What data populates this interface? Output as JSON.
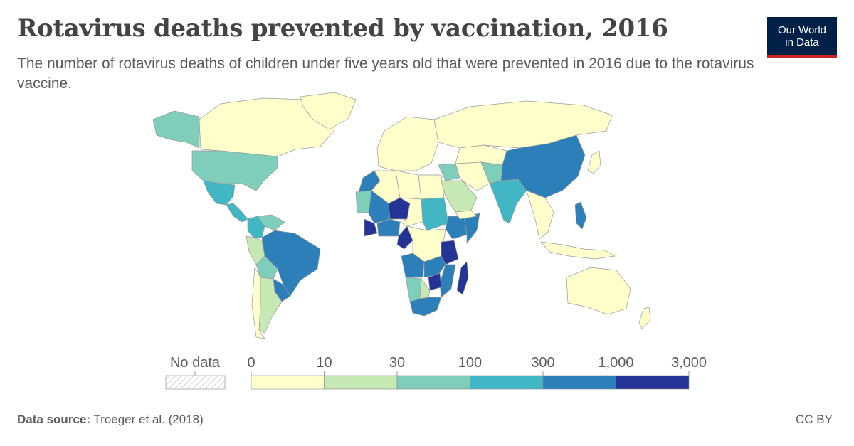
{
  "header": {
    "title": "Rotavirus deaths prevented by vaccination, 2016",
    "subtitle": "The number of rotavirus deaths of children under five years old that were prevented in 2016 due to the rotavirus vaccine."
  },
  "logo": {
    "line1": "Our World",
    "line2": "in Data",
    "bg_color": "#002147",
    "accent_color": "#ce261e"
  },
  "legend": {
    "no_data_label": "No data",
    "bins": [
      0,
      10,
      30,
      100,
      300,
      1000,
      3000
    ],
    "bin_labels": [
      "0",
      "10",
      "30",
      "100",
      "300",
      "1,000",
      "3,000"
    ],
    "colors": [
      "#ffffcc",
      "#c7e9b4",
      "#7fcdbb",
      "#41b6c4",
      "#2c7fb8",
      "#253494"
    ]
  },
  "footer": {
    "source_label": "Data source:",
    "source_text": "Troeger et al. (2018)",
    "license": "CC BY"
  },
  "map_data": {
    "type": "choropleth",
    "year": 2016,
    "regions": [
      {
        "name": "Canada",
        "bin": 0
      },
      {
        "name": "Alaska (United States)",
        "bin": 2
      },
      {
        "name": "United States",
        "bin": 2
      },
      {
        "name": "Mexico",
        "bin": 3
      },
      {
        "name": "Central America",
        "bin": 3
      },
      {
        "name": "Colombia",
        "bin": 3
      },
      {
        "name": "Venezuela",
        "bin": 2
      },
      {
        "name": "Peru",
        "bin": 1
      },
      {
        "name": "Brazil",
        "bin": 4
      },
      {
        "name": "Bolivia",
        "bin": 2
      },
      {
        "name": "Paraguay",
        "bin": 4
      },
      {
        "name": "Argentina",
        "bin": 1
      },
      {
        "name": "Chile",
        "bin": 0
      },
      {
        "name": "Greenland",
        "bin": 0
      },
      {
        "name": "Europe",
        "bin": 0
      },
      {
        "name": "Russia",
        "bin": 0
      },
      {
        "name": "Morocco",
        "bin": 4
      },
      {
        "name": "Algeria",
        "bin": 0
      },
      {
        "name": "Libya",
        "bin": 0
      },
      {
        "name": "Egypt",
        "bin": 0
      },
      {
        "name": "Mauritania",
        "bin": 2
      },
      {
        "name": "Mali",
        "bin": 4
      },
      {
        "name": "Niger",
        "bin": 5
      },
      {
        "name": "Burkina Faso",
        "bin": 5
      },
      {
        "name": "Nigeria",
        "bin": 4
      },
      {
        "name": "Chad",
        "bin": 0
      },
      {
        "name": "Sudan",
        "bin": 3
      },
      {
        "name": "Ethiopia",
        "bin": 4
      },
      {
        "name": "Somalia",
        "bin": 4
      },
      {
        "name": "DR Congo",
        "bin": 0
      },
      {
        "name": "Cameroon",
        "bin": 5
      },
      {
        "name": "Tanzania",
        "bin": 5
      },
      {
        "name": "Angola",
        "bin": 4
      },
      {
        "name": "Zambia",
        "bin": 4
      },
      {
        "name": "Mozambique",
        "bin": 4
      },
      {
        "name": "Zimbabwe",
        "bin": 5
      },
      {
        "name": "Namibia",
        "bin": 2
      },
      {
        "name": "Botswana",
        "bin": 1
      },
      {
        "name": "South Africa",
        "bin": 4
      },
      {
        "name": "Madagascar",
        "bin": 5
      },
      {
        "name": "Saudi Arabia",
        "bin": 1
      },
      {
        "name": "Yemen",
        "bin": 0
      },
      {
        "name": "Iraq",
        "bin": 2
      },
      {
        "name": "Iran",
        "bin": 0
      },
      {
        "name": "Central Asia",
        "bin": 0
      },
      {
        "name": "Afghanistan",
        "bin": 2
      },
      {
        "name": "India",
        "bin": 3
      },
      {
        "name": "China",
        "bin": 4
      },
      {
        "name": "Southeast Asia",
        "bin": 0
      },
      {
        "name": "Philippines",
        "bin": 4
      },
      {
        "name": "Japan",
        "bin": 0
      },
      {
        "name": "Indonesia",
        "bin": 0
      },
      {
        "name": "Australia",
        "bin": 0
      },
      {
        "name": "New Zealand",
        "bin": 0
      }
    ]
  }
}
